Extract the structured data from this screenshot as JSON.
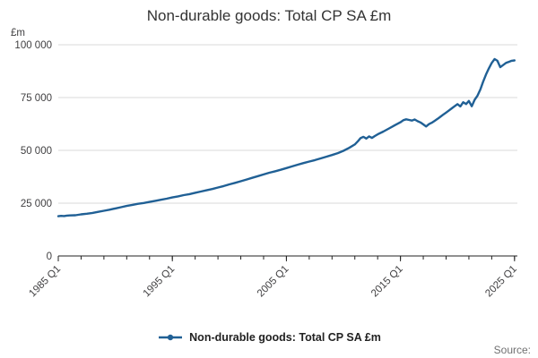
{
  "title": "Non-durable goods: Total CP SA £m",
  "unit_label": "£m",
  "source_label": "Source:",
  "legend": {
    "label": "Non-durable goods: Total CP SA £m"
  },
  "colors": {
    "line": "#206095",
    "grid": "#d9d9d9",
    "axis": "#222222",
    "text": "#414042"
  },
  "chart_data": {
    "type": "line",
    "title": "Non-durable goods: Total CP SA £m",
    "xlabel": "",
    "ylabel": "£m",
    "grid": "horizontal",
    "legend_position": "bottom",
    "xlim": [
      1985,
      2025.25
    ],
    "ylim": [
      0,
      100000
    ],
    "x_tick_years": [
      1985,
      1995,
      2005,
      2015,
      2025
    ],
    "x_tick_labels": [
      "1985 Q1",
      "1995 Q1",
      "2005 Q1",
      "2015 Q1",
      "2025 Q1"
    ],
    "y_ticks": [
      0,
      25000,
      50000,
      75000,
      100000
    ],
    "y_tick_labels": [
      "0",
      "25 000",
      "50 000",
      "75 000",
      "100 000"
    ],
    "series": [
      {
        "name": "Non-durable goods: Total CP SA £m",
        "points": [
          [
            1985.0,
            18800
          ],
          [
            1985.25,
            19000
          ],
          [
            1985.5,
            18900
          ],
          [
            1985.75,
            19100
          ],
          [
            1986.0,
            19200
          ],
          [
            1986.5,
            19300
          ],
          [
            1987.0,
            19700
          ],
          [
            1987.5,
            20000
          ],
          [
            1988.0,
            20400
          ],
          [
            1988.5,
            20900
          ],
          [
            1989.0,
            21400
          ],
          [
            1989.5,
            21900
          ],
          [
            1990.0,
            22500
          ],
          [
            1990.5,
            23100
          ],
          [
            1991.0,
            23700
          ],
          [
            1991.5,
            24200
          ],
          [
            1992.0,
            24700
          ],
          [
            1992.5,
            25100
          ],
          [
            1993.0,
            25600
          ],
          [
            1993.5,
            26100
          ],
          [
            1994.0,
            26600
          ],
          [
            1994.5,
            27100
          ],
          [
            1995.0,
            27700
          ],
          [
            1995.5,
            28200
          ],
          [
            1996.0,
            28800
          ],
          [
            1996.5,
            29300
          ],
          [
            1997.0,
            29900
          ],
          [
            1997.5,
            30500
          ],
          [
            1998.0,
            31100
          ],
          [
            1998.5,
            31700
          ],
          [
            1999.0,
            32400
          ],
          [
            1999.5,
            33100
          ],
          [
            2000.0,
            33900
          ],
          [
            2000.5,
            34600
          ],
          [
            2001.0,
            35400
          ],
          [
            2001.5,
            36200
          ],
          [
            2002.0,
            37000
          ],
          [
            2002.5,
            37800
          ],
          [
            2003.0,
            38600
          ],
          [
            2003.5,
            39400
          ],
          [
            2004.0,
            40100
          ],
          [
            2004.5,
            40800
          ],
          [
            2005.0,
            41600
          ],
          [
            2005.5,
            42400
          ],
          [
            2006.0,
            43200
          ],
          [
            2006.5,
            44000
          ],
          [
            2007.0,
            44700
          ],
          [
            2007.5,
            45400
          ],
          [
            2008.0,
            46200
          ],
          [
            2008.5,
            47000
          ],
          [
            2009.0,
            47800
          ],
          [
            2009.5,
            48700
          ],
          [
            2010.0,
            49800
          ],
          [
            2010.5,
            51200
          ],
          [
            2011.0,
            52800
          ],
          [
            2011.25,
            54200
          ],
          [
            2011.5,
            55800
          ],
          [
            2011.75,
            56400
          ],
          [
            2012.0,
            55600
          ],
          [
            2012.25,
            56600
          ],
          [
            2012.5,
            55900
          ],
          [
            2012.75,
            56800
          ],
          [
            2013.0,
            57600
          ],
          [
            2013.5,
            58900
          ],
          [
            2014.0,
            60400
          ],
          [
            2014.5,
            61900
          ],
          [
            2015.0,
            63300
          ],
          [
            2015.25,
            64300
          ],
          [
            2015.5,
            64700
          ],
          [
            2015.75,
            64400
          ],
          [
            2016.0,
            64100
          ],
          [
            2016.25,
            64600
          ],
          [
            2016.5,
            63800
          ],
          [
            2016.75,
            63200
          ],
          [
            2017.0,
            62300
          ],
          [
            2017.25,
            61300
          ],
          [
            2017.5,
            62400
          ],
          [
            2017.75,
            63100
          ],
          [
            2018.0,
            64000
          ],
          [
            2018.25,
            64900
          ],
          [
            2018.5,
            65900
          ],
          [
            2018.75,
            66900
          ],
          [
            2019.0,
            67900
          ],
          [
            2019.25,
            68900
          ],
          [
            2019.5,
            69900
          ],
          [
            2019.75,
            70900
          ],
          [
            2020.0,
            71900
          ],
          [
            2020.25,
            70800
          ],
          [
            2020.5,
            72800
          ],
          [
            2020.75,
            71900
          ],
          [
            2021.0,
            73400
          ],
          [
            2021.25,
            70900
          ],
          [
            2021.5,
            73900
          ],
          [
            2021.75,
            75900
          ],
          [
            2022.0,
            78800
          ],
          [
            2022.25,
            82500
          ],
          [
            2022.5,
            85900
          ],
          [
            2022.75,
            88800
          ],
          [
            2023.0,
            91400
          ],
          [
            2023.25,
            93200
          ],
          [
            2023.5,
            92400
          ],
          [
            2023.75,
            89400
          ],
          [
            2024.0,
            90400
          ],
          [
            2024.25,
            91400
          ],
          [
            2024.5,
            91900
          ],
          [
            2024.75,
            92400
          ],
          [
            2025.0,
            92600
          ]
        ]
      }
    ]
  }
}
